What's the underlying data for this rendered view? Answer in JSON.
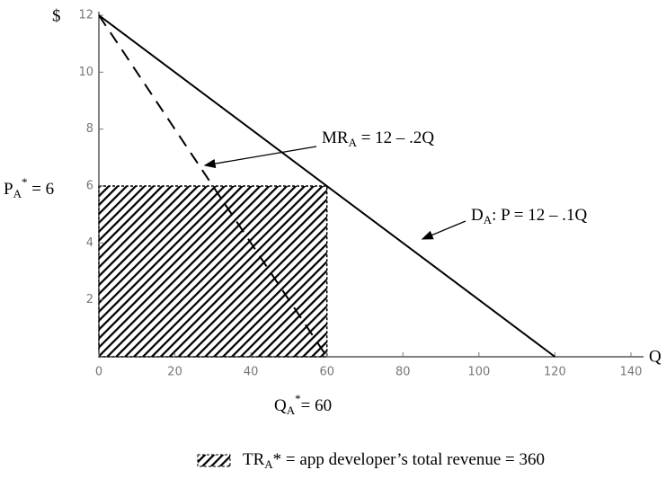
{
  "chart_data": {
    "type": "line",
    "xlim": [
      0,
      140
    ],
    "xticks": [
      0,
      20,
      40,
      60,
      80,
      100,
      120,
      140
    ],
    "ylim": [
      0,
      12
    ],
    "yticks": [
      2,
      4,
      6,
      8,
      10,
      12
    ],
    "y_axis_label": "$",
    "x_axis_label": "Q",
    "series": [
      {
        "name": "demand",
        "color": "#000000",
        "dash": false,
        "x": [
          0,
          120
        ],
        "values": [
          12,
          0
        ]
      },
      {
        "name": "marginal revenue",
        "color": "#000000",
        "dash": true,
        "x": [
          0,
          60
        ],
        "values": [
          12,
          0
        ]
      }
    ],
    "regions": [
      {
        "x": [
          0,
          60
        ],
        "y": [
          0,
          6
        ]
      }
    ],
    "annotations": {
      "mr": {
        "text": "MR",
        "sub": "A",
        "rest": " = 12 – .2Q"
      },
      "demand": {
        "text": "D",
        "sub": "A",
        "rest": ": P = 12 – .1Q"
      },
      "price": {
        "text": "P",
        "sub": "A",
        "sup": "*",
        "rest": " = 6"
      },
      "quantity": {
        "text": "Q",
        "sub": "A",
        "sup": "*",
        "rest": "= 60"
      },
      "legend": {
        "text": "TR",
        "sub": "A",
        "rest": "* = app developer’s total revenue = 360"
      }
    }
  }
}
